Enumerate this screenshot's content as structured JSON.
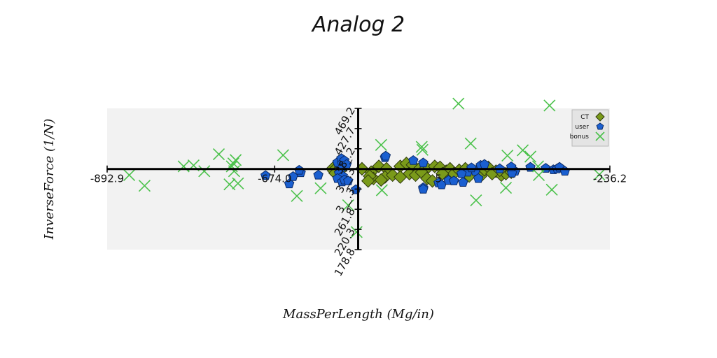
{
  "chart_data": {
    "type": "scatter",
    "title": "Analog 2",
    "xlabel": "MassPerLength (Mg/in)",
    "ylabel": "InverseForce (1/N)",
    "xlim": [
      -892.9,
      -236.2
    ],
    "ylim": [
      178.8,
      469.2
    ],
    "axes_cross": {
      "x": -565.0,
      "y": 344.5
    },
    "x_ticks": [
      "-892.9",
      "-674.0",
      "-236.2"
    ],
    "x_partial_tick": "5",
    "y_ticks": [
      "178.8",
      "220.3",
      "261.8",
      "303.3",
      "344.8",
      "386.2",
      "427.7",
      "469.2"
    ],
    "y_tick_display": [
      "178.8",
      "220.3",
      "261.8",
      "3__.3",
      "3__.3",
      "38_.2",
      "427.7",
      "469.2"
    ],
    "legend_position": "top-right",
    "series": [
      {
        "name": "CT",
        "marker": "diamond",
        "color": "#7a9a1a",
        "points": [
          [
            -598,
            346
          ],
          [
            -597,
            341
          ],
          [
            -588,
            342
          ],
          [
            -595,
            336
          ],
          [
            -560,
            345
          ],
          [
            -538,
            350
          ],
          [
            -548,
            338
          ],
          [
            -545,
            325
          ],
          [
            -528,
            345
          ],
          [
            -530,
            328
          ],
          [
            -550,
            330
          ],
          [
            -552,
            320
          ],
          [
            -535,
            322
          ],
          [
            -510,
            350
          ],
          [
            -502,
            356
          ],
          [
            -494,
            353
          ],
          [
            -485,
            345
          ],
          [
            -475,
            346
          ],
          [
            -465,
            350
          ],
          [
            -458,
            348
          ],
          [
            -450,
            340
          ],
          [
            -445,
            345
          ],
          [
            -440,
            335
          ],
          [
            -433,
            342
          ],
          [
            -425,
            345
          ],
          [
            -418,
            338
          ],
          [
            -410,
            340
          ],
          [
            -405,
            330
          ],
          [
            -400,
            343
          ],
          [
            -395,
            348
          ],
          [
            -385,
            340
          ],
          [
            -378,
            332
          ],
          [
            -372,
            335
          ],
          [
            -365,
            338
          ],
          [
            -362,
            340
          ],
          [
            -498,
            335
          ],
          [
            -490,
            332
          ],
          [
            -482,
            338
          ],
          [
            -475,
            325
          ],
          [
            -468,
            320
          ],
          [
            -455,
            335
          ],
          [
            -520,
            332
          ],
          [
            -510,
            328
          ],
          [
            -420,
            330
          ],
          [
            -390,
            335
          ],
          [
            -380,
            342
          ]
        ]
      },
      {
        "name": "user",
        "marker": "pentagon",
        "color": "#1a5fd0",
        "points": [
          [
            -592,
            358
          ],
          [
            -587,
            366
          ],
          [
            -586,
            356
          ],
          [
            -584,
            350
          ],
          [
            -583,
            362
          ],
          [
            -580,
            354
          ],
          [
            -588,
            344
          ],
          [
            -590,
            336
          ],
          [
            -585,
            330
          ],
          [
            -592,
            325
          ],
          [
            -586,
            318
          ],
          [
            -583,
            322
          ],
          [
            -578,
            320
          ],
          [
            -568,
            302
          ],
          [
            -617,
            332
          ],
          [
            -640,
            337
          ],
          [
            -642,
            342
          ],
          [
            -650,
            329
          ],
          [
            -655,
            314
          ],
          [
            -686,
            331
          ],
          [
            -530,
            368
          ],
          [
            -529,
            371
          ],
          [
            -493,
            362
          ],
          [
            -480,
            357
          ],
          [
            -480,
            306
          ],
          [
            -480,
            303
          ],
          [
            -460,
            316
          ],
          [
            -456,
            312
          ],
          [
            -447,
            321
          ],
          [
            -440,
            320
          ],
          [
            -428,
            317
          ],
          [
            -422,
            338
          ],
          [
            -412,
            340
          ],
          [
            -405,
            352
          ],
          [
            -400,
            354
          ],
          [
            -408,
            325
          ],
          [
            -380,
            345
          ],
          [
            -360,
            340
          ],
          [
            -364,
            336
          ],
          [
            -417,
            347
          ],
          [
            -430,
            335
          ],
          [
            -365,
            349
          ],
          [
            -340,
            348
          ],
          [
            -320,
            346
          ],
          [
            -310,
            343
          ],
          [
            -305,
            345
          ],
          [
            -302,
            348
          ],
          [
            -295,
            340
          ]
        ]
      },
      {
        "name": "bonus",
        "marker": "x",
        "color": "#4cc24c",
        "points": [
          [
            -864,
            332
          ],
          [
            -844,
            310
          ],
          [
            -793,
            350
          ],
          [
            -780,
            352
          ],
          [
            -747,
            375
          ],
          [
            -766,
            340
          ],
          [
            -730,
            350
          ],
          [
            -728,
            356
          ],
          [
            -725,
            363
          ],
          [
            -727,
            340
          ],
          [
            -733,
            313
          ],
          [
            -722,
            315
          ],
          [
            -663,
            373
          ],
          [
            -645,
            289
          ],
          [
            -614,
            305
          ],
          [
            -578,
            270
          ],
          [
            -535,
            394
          ],
          [
            -534,
            301
          ],
          [
            -482,
            390
          ],
          [
            -481,
            384
          ],
          [
            -434,
            479
          ],
          [
            -418,
            397
          ],
          [
            -411,
            280
          ],
          [
            -372,
            306
          ],
          [
            -370,
            372
          ],
          [
            -350,
            383
          ],
          [
            -340,
            370
          ],
          [
            -330,
            350
          ],
          [
            -329,
            332
          ],
          [
            -315,
            475
          ],
          [
            -312,
            302
          ],
          [
            -250,
            333
          ],
          [
            -567,
            215
          ]
        ]
      }
    ]
  }
}
